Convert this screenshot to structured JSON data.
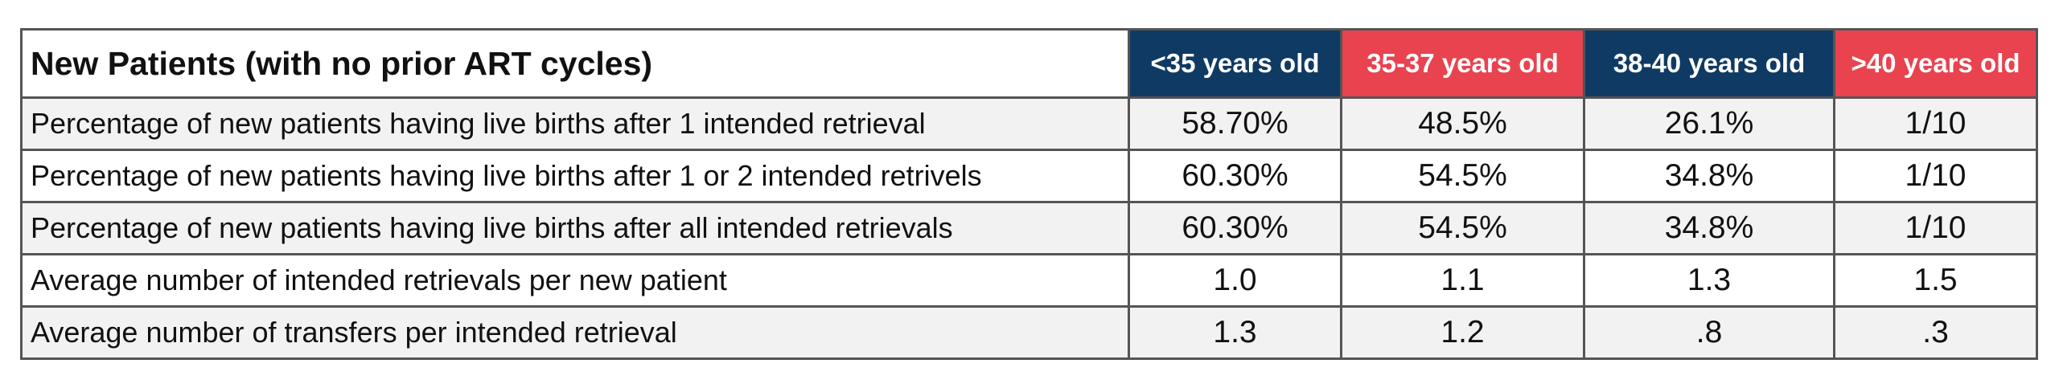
{
  "table": {
    "title": "New Patients (with no prior ART cycles)",
    "columns": [
      {
        "label": "<35 years old",
        "color": "#0f3a63"
      },
      {
        "label": "35-37 years old",
        "color": "#e8434f"
      },
      {
        "label": "38-40 years old",
        "color": "#0f3a63"
      },
      {
        "label": ">40 years old",
        "color": "#e8434f"
      }
    ],
    "row_colors": [
      "#f2f2f2",
      "#ffffff"
    ],
    "rows": [
      {
        "label": "Percentage of new patients having live births after 1 intended retrieval",
        "values": [
          "58.70%",
          "48.5%",
          "26.1%",
          "1/10"
        ]
      },
      {
        "label": "Percentage of new patients having live births after 1 or 2 intended retrivels",
        "values": [
          "60.30%",
          "54.5%",
          "34.8%",
          "1/10"
        ]
      },
      {
        "label": "Percentage of new patients having live births after all intended retrievals",
        "values": [
          "60.30%",
          "54.5%",
          "34.8%",
          "1/10"
        ]
      },
      {
        "label": "Average number of intended retrievals per new patient",
        "values": [
          "1.0",
          "1.1",
          "1.3",
          "1.5"
        ]
      },
      {
        "label": "Average number of transfers per intended retrieval",
        "values": [
          "1.3",
          "1.2",
          ".8",
          ".3"
        ]
      }
    ]
  }
}
